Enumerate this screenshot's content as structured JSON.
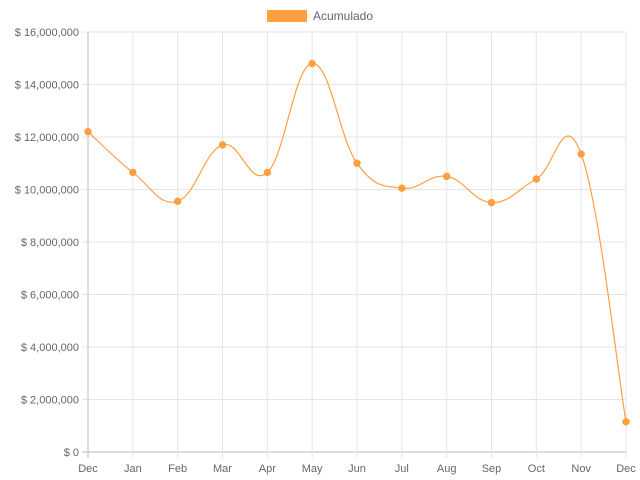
{
  "chart_data": {
    "type": "line",
    "categories": [
      "Dec",
      "Jan",
      "Feb",
      "Mar",
      "Apr",
      "May",
      "Jun",
      "Jul",
      "Aug",
      "Sep",
      "Oct",
      "Nov",
      "Dec"
    ],
    "series": [
      {
        "name": "Acumulado",
        "values": [
          12200000,
          10650000,
          9550000,
          11700000,
          10650000,
          14800000,
          11000000,
          10050000,
          10500000,
          9500000,
          10400000,
          11350000,
          1150000
        ],
        "color": "#ff9f40"
      }
    ],
    "yticks": [
      "$ 0",
      "$ 2,000,000",
      "$ 4,000,000",
      "$ 6,000,000",
      "$ 8,000,000",
      "$ 10,000,000",
      "$ 12,000,000",
      "$ 14,000,000",
      "$ 16,000,000"
    ],
    "ylim": [
      0,
      16000000
    ],
    "grid": true,
    "legend_position": "top-center",
    "gridline_color": "#e5e5e5",
    "axis_color": "#bbbbbb"
  }
}
